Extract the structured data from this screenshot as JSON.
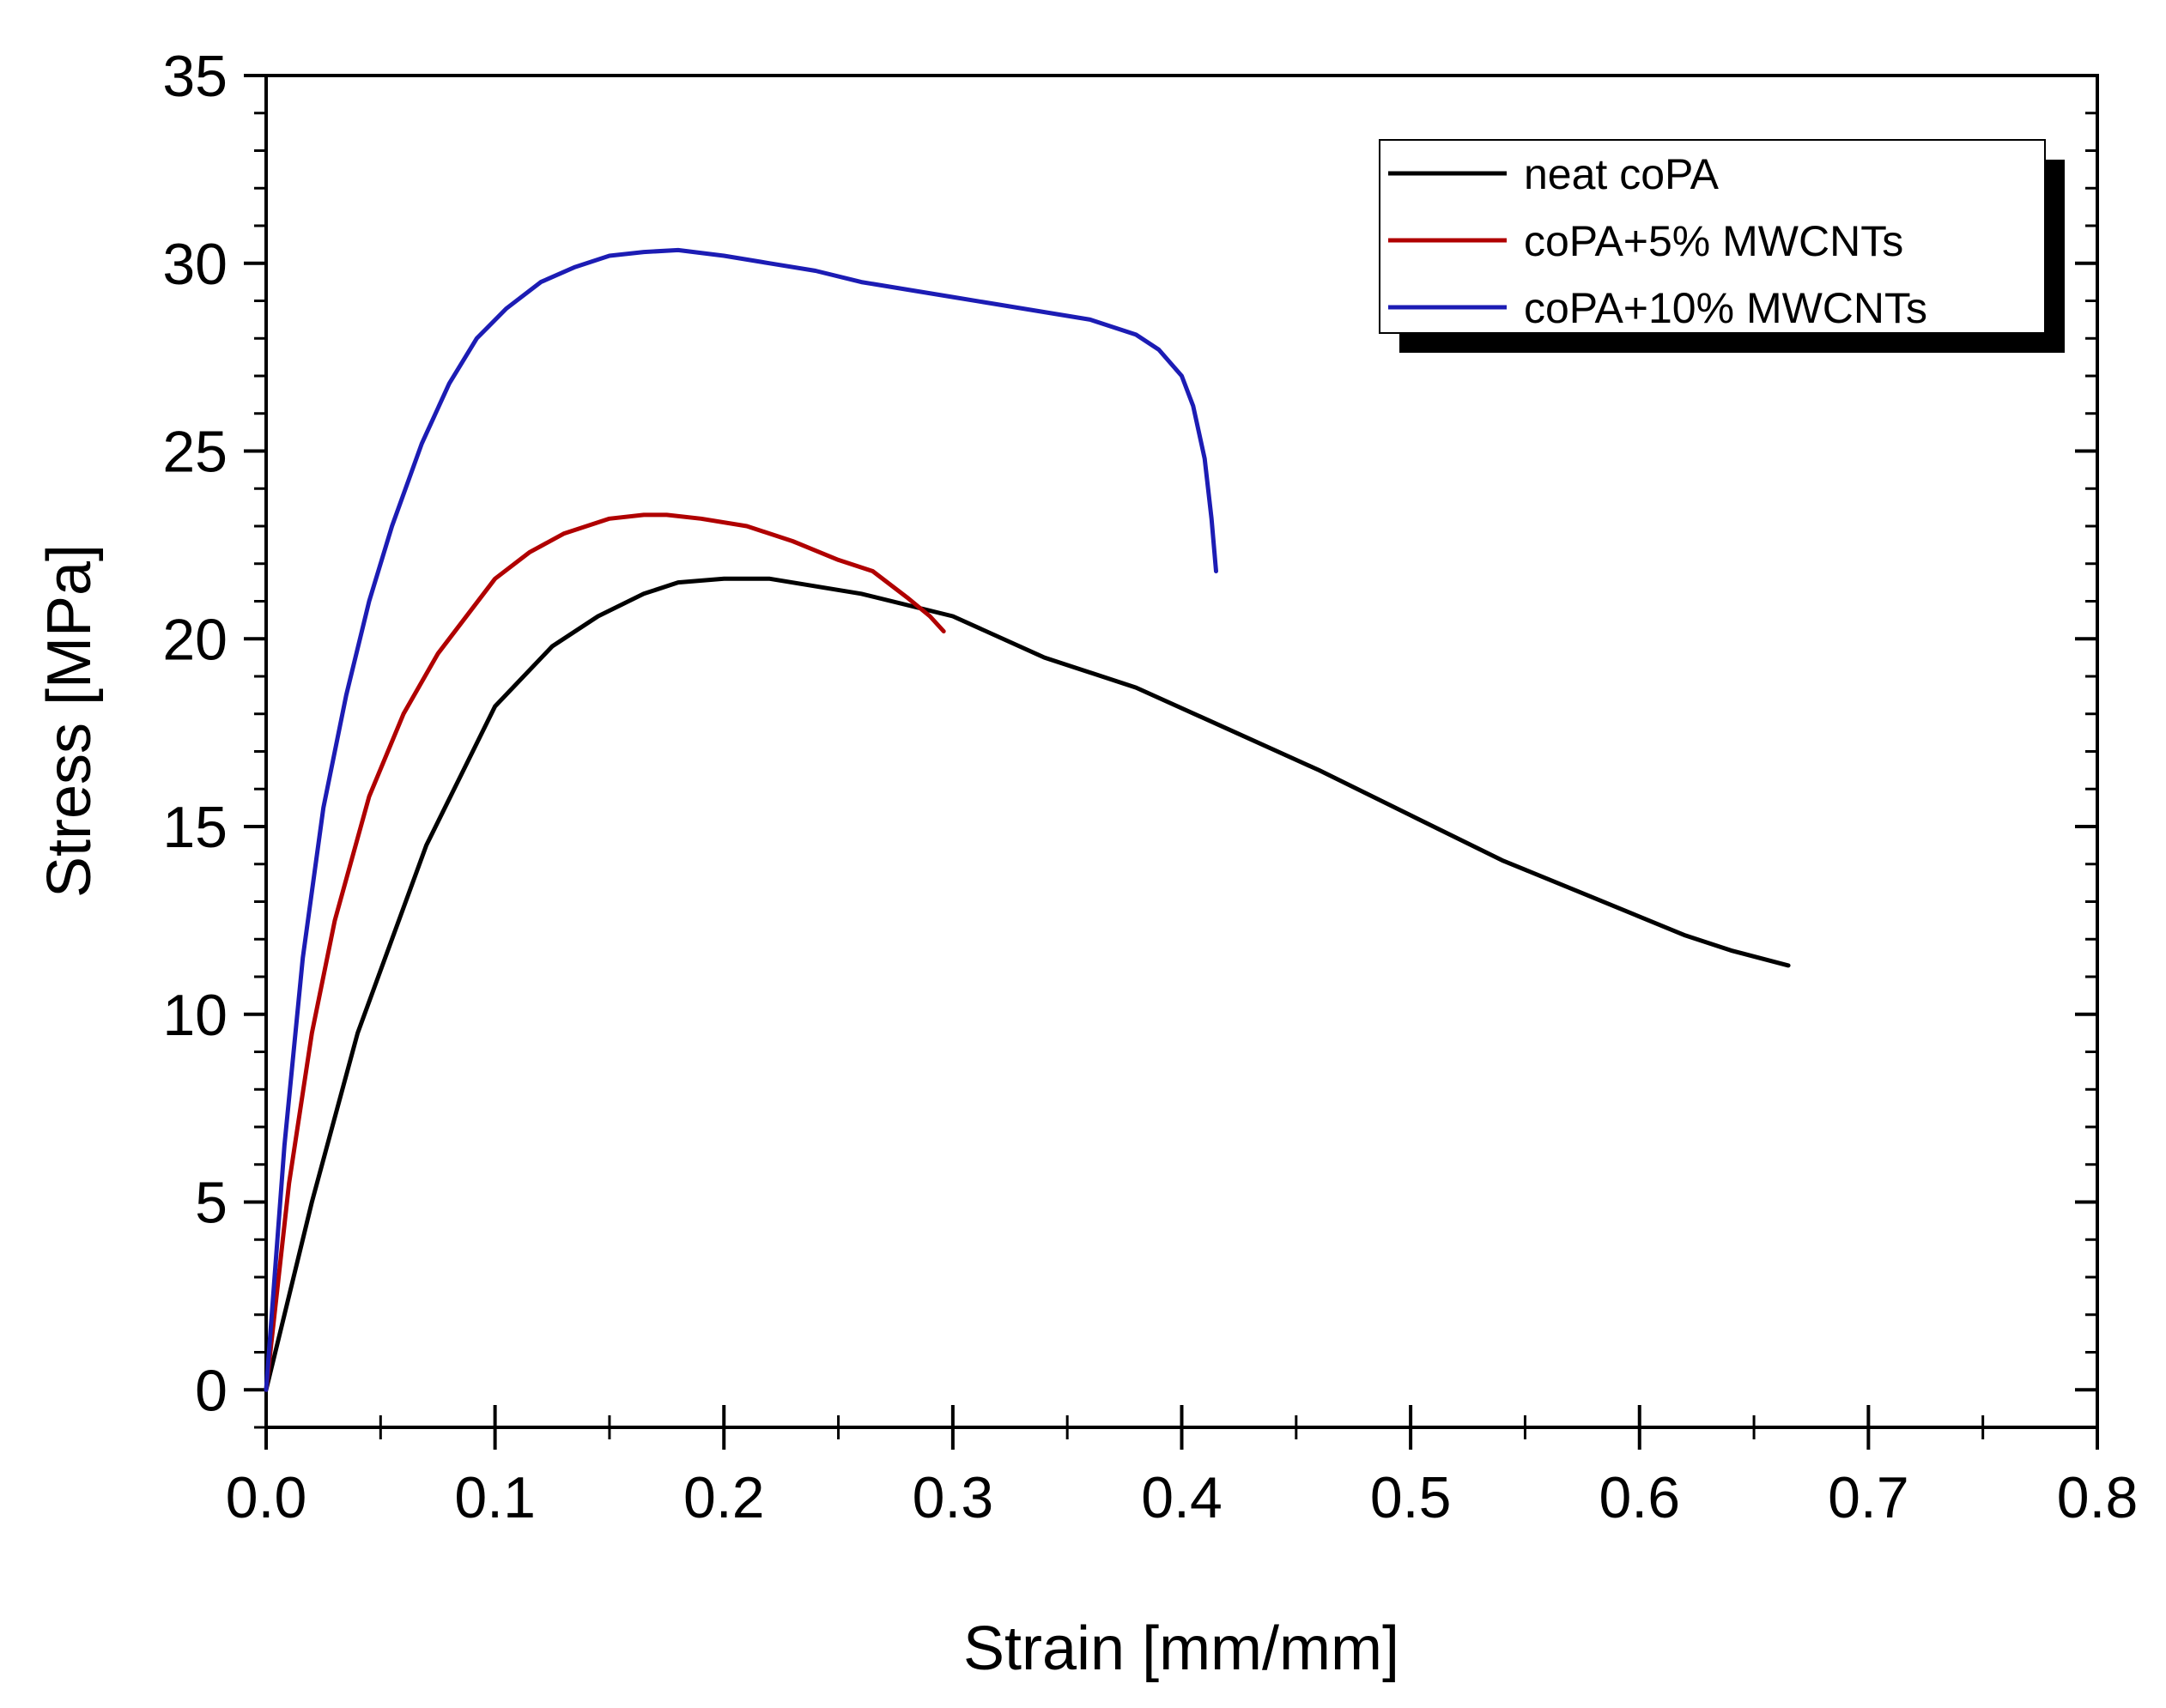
{
  "chart_data": {
    "type": "line",
    "title": "",
    "xlabel": "Strain [mm/mm]",
    "ylabel": "Stress [MPa]",
    "xlim": [
      0.0,
      0.8
    ],
    "ylim": [
      -1,
      35
    ],
    "x_ticks": [
      0.0,
      0.1,
      0.2,
      0.3,
      0.4,
      0.5,
      0.6,
      0.7,
      0.8
    ],
    "x_tick_labels": [
      "0.0",
      "0.1",
      "0.2",
      "0.3",
      "0.4",
      "0.5",
      "0.6",
      "0.7",
      "0.8"
    ],
    "y_ticks": [
      0,
      5,
      10,
      15,
      20,
      25,
      30,
      35
    ],
    "y_tick_labels": [
      "0",
      "5",
      "10",
      "15",
      "20",
      "25",
      "30",
      "35"
    ],
    "grid": false,
    "legend_position": "top-right",
    "series": [
      {
        "name": "neat coPA",
        "color": "#000000",
        "x": [
          0,
          0.02,
          0.04,
          0.07,
          0.1,
          0.125,
          0.145,
          0.165,
          0.18,
          0.2,
          0.22,
          0.26,
          0.3,
          0.34,
          0.38,
          0.42,
          0.46,
          0.5,
          0.54,
          0.58,
          0.62,
          0.64,
          0.665
        ],
        "y": [
          0,
          5.0,
          9.5,
          14.5,
          18.2,
          19.8,
          20.6,
          21.2,
          21.5,
          21.6,
          21.6,
          21.2,
          20.6,
          19.5,
          18.7,
          17.6,
          16.5,
          15.3,
          14.1,
          13.1,
          12.1,
          11.7,
          11.3
        ]
      },
      {
        "name": "coPA+5% MWCNTs",
        "color": "#b00000",
        "x": [
          0,
          0.01,
          0.02,
          0.03,
          0.045,
          0.06,
          0.075,
          0.09,
          0.1,
          0.115,
          0.13,
          0.15,
          0.165,
          0.175,
          0.19,
          0.21,
          0.23,
          0.25,
          0.265,
          0.28,
          0.29,
          0.296
        ],
        "y": [
          0,
          5.5,
          9.5,
          12.5,
          15.8,
          18.0,
          19.6,
          20.8,
          21.6,
          22.3,
          22.8,
          23.2,
          23.3,
          23.3,
          23.2,
          23.0,
          22.6,
          22.1,
          21.8,
          21.1,
          20.6,
          20.2
        ]
      },
      {
        "name": "coPA+10% MWCNTs",
        "color": "#1c1cb4",
        "x": [
          0,
          0.008,
          0.016,
          0.025,
          0.035,
          0.045,
          0.055,
          0.068,
          0.08,
          0.092,
          0.105,
          0.12,
          0.135,
          0.15,
          0.165,
          0.18,
          0.2,
          0.22,
          0.24,
          0.26,
          0.28,
          0.3,
          0.32,
          0.34,
          0.36,
          0.38,
          0.39,
          0.4,
          0.405,
          0.41,
          0.413,
          0.415
        ],
        "y": [
          0,
          6.5,
          11.5,
          15.5,
          18.5,
          21.0,
          23.0,
          25.2,
          26.8,
          28.0,
          28.8,
          29.5,
          29.9,
          30.2,
          30.3,
          30.35,
          30.2,
          30.0,
          29.8,
          29.5,
          29.3,
          29.1,
          28.9,
          28.7,
          28.5,
          28.1,
          27.7,
          27.0,
          26.2,
          24.8,
          23.2,
          21.8
        ]
      }
    ]
  }
}
